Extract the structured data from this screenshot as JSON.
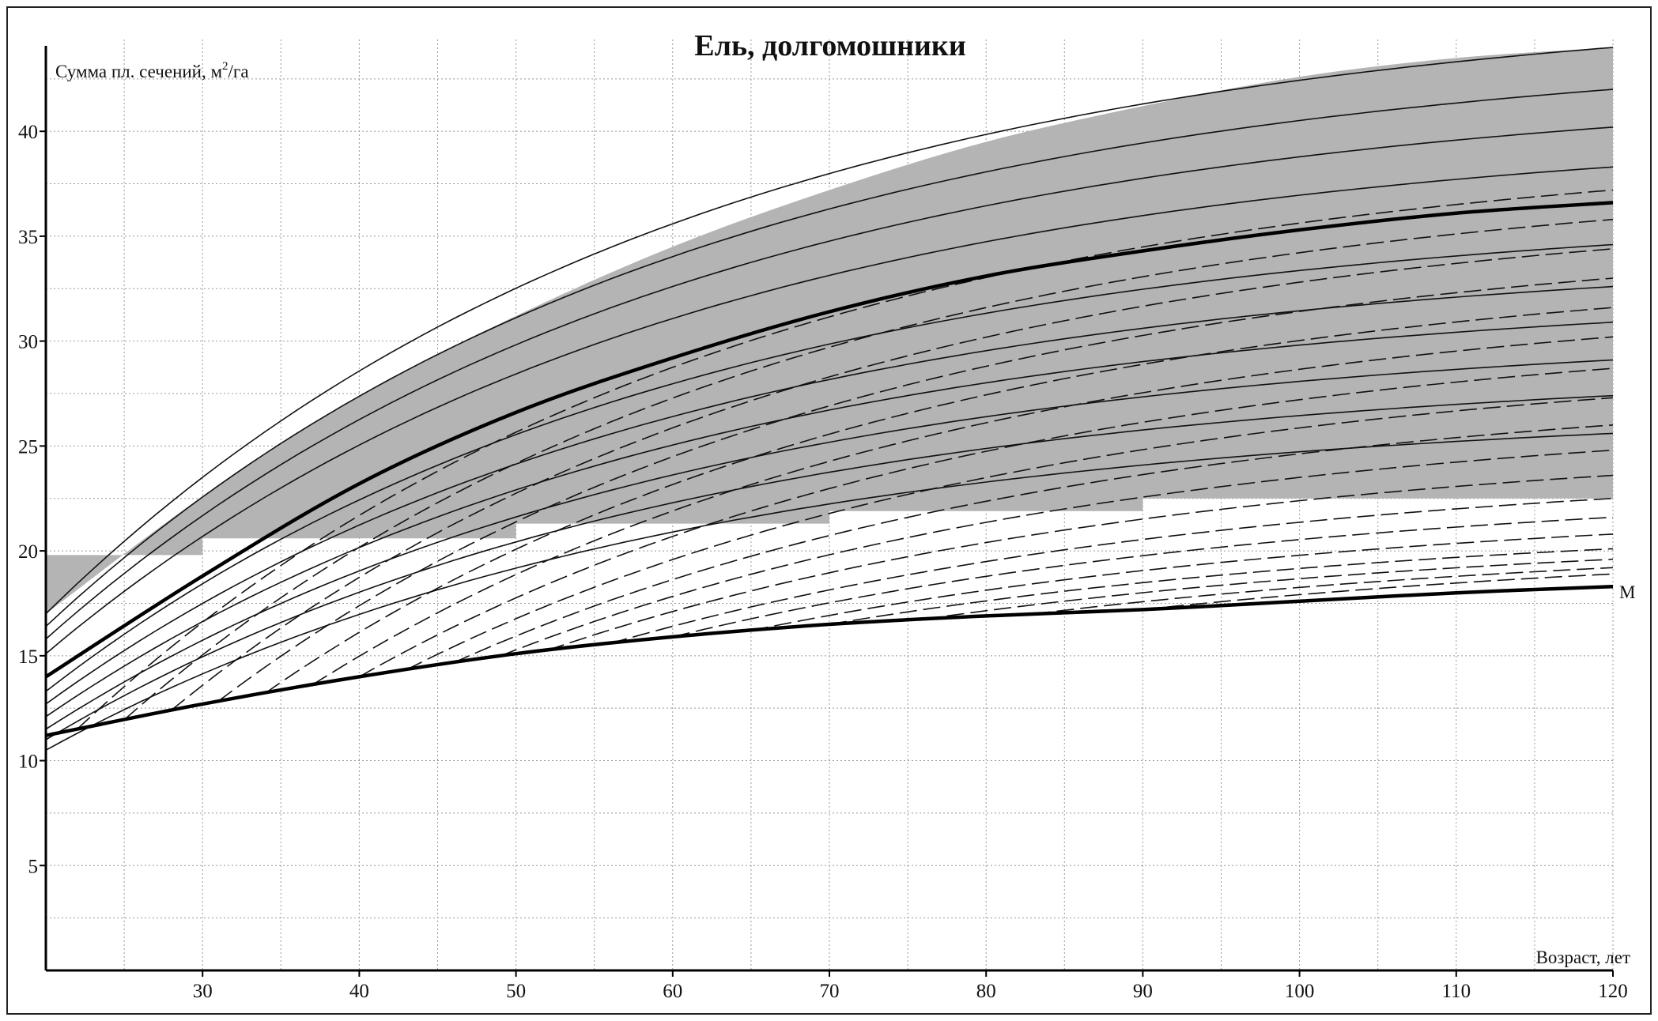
{
  "chart_data": {
    "type": "line",
    "title": "Ель, долгомошники",
    "ylabel": "Сумма пл. сечений, м²/га",
    "ylabel_main": "Сумма пл. сечений, м",
    "ylabel_sup": "2",
    "ylabel_tail": "/га",
    "xlabel": "Возраст, лет",
    "xlim": [
      20,
      120
    ],
    "ylim": [
      0,
      44
    ],
    "x_ticks": [
      30,
      40,
      50,
      60,
      70,
      80,
      90,
      100,
      110,
      120
    ],
    "y_ticks": [
      5,
      10,
      15,
      20,
      25,
      30,
      35,
      40
    ],
    "grid": true,
    "shaded_zone": {
      "upper": [
        [
          20,
          17.0
        ],
        [
          30,
          22.6
        ],
        [
          40,
          27.4
        ],
        [
          50,
          31.2
        ],
        [
          60,
          34.5
        ],
        [
          70,
          37.2
        ],
        [
          80,
          39.5
        ],
        [
          90,
          41.2
        ],
        [
          100,
          42.6
        ],
        [
          110,
          43.5
        ],
        [
          120,
          44.0
        ]
      ],
      "floor_steps": [
        [
          20,
          19.8
        ],
        [
          30,
          19.8
        ],
        [
          30,
          20.6
        ],
        [
          40,
          20.6
        ],
        [
          50,
          20.6
        ],
        [
          50,
          21.3
        ],
        [
          60,
          21.3
        ],
        [
          70,
          21.3
        ],
        [
          70,
          21.9
        ],
        [
          80,
          21.9
        ],
        [
          90,
          21.9
        ],
        [
          90,
          22.5
        ],
        [
          100,
          22.5
        ],
        [
          110,
          22.5
        ],
        [
          120,
          22.5
        ]
      ]
    },
    "series_M": {
      "name": "М",
      "x": [
        20,
        30,
        40,
        50,
        60,
        70,
        80,
        90,
        100,
        110,
        120
      ],
      "y": [
        11.2,
        12.7,
        14.0,
        15.1,
        15.9,
        16.5,
        16.9,
        17.2,
        17.6,
        18.0,
        18.3
      ]
    },
    "series_main": {
      "x": [
        20,
        30,
        40,
        50,
        60,
        70,
        80,
        90,
        100,
        110,
        120
      ],
      "y": [
        14.0,
        18.8,
        23.2,
        26.6,
        29.2,
        31.4,
        33.1,
        34.3,
        35.3,
        36.1,
        36.6
      ]
    },
    "solid_curves": [
      {
        "y0": 17.0,
        "y120": 44.0
      },
      {
        "y0": 16.4,
        "y120": 42.0
      },
      {
        "y0": 15.8,
        "y120": 40.2
      },
      {
        "y0": 15.1,
        "y120": 38.3
      },
      {
        "y0": 13.3,
        "y120": 34.6
      },
      {
        "y0": 12.7,
        "y120": 32.6
      },
      {
        "y0": 12.1,
        "y120": 30.9
      },
      {
        "y0": 11.5,
        "y120": 29.1
      },
      {
        "y0": 11.0,
        "y120": 27.4
      },
      {
        "y0": 10.5,
        "y120": 25.6
      }
    ],
    "dashed_curves": [
      {
        "x0": 22,
        "y120": 37.2
      },
      {
        "x0": 25,
        "y120": 35.8
      },
      {
        "x0": 28,
        "y120": 34.4
      },
      {
        "x0": 31,
        "y120": 33.0
      },
      {
        "x0": 34,
        "y120": 31.6
      },
      {
        "x0": 37,
        "y120": 30.2
      },
      {
        "x0": 40,
        "y120": 28.7
      },
      {
        "x0": 43,
        "y120": 27.3
      },
      {
        "x0": 46,
        "y120": 26.0
      },
      {
        "x0": 49,
        "y120": 24.8
      },
      {
        "x0": 52,
        "y120": 23.6
      },
      {
        "x0": 56,
        "y120": 22.5
      },
      {
        "x0": 60,
        "y120": 21.6
      },
      {
        "x0": 65,
        "y120": 20.8
      },
      {
        "x0": 70,
        "y120": 20.1
      },
      {
        "x0": 76,
        "y120": 19.6
      },
      {
        "x0": 83,
        "y120": 19.2
      },
      {
        "x0": 90,
        "y120": 18.9
      }
    ]
  }
}
